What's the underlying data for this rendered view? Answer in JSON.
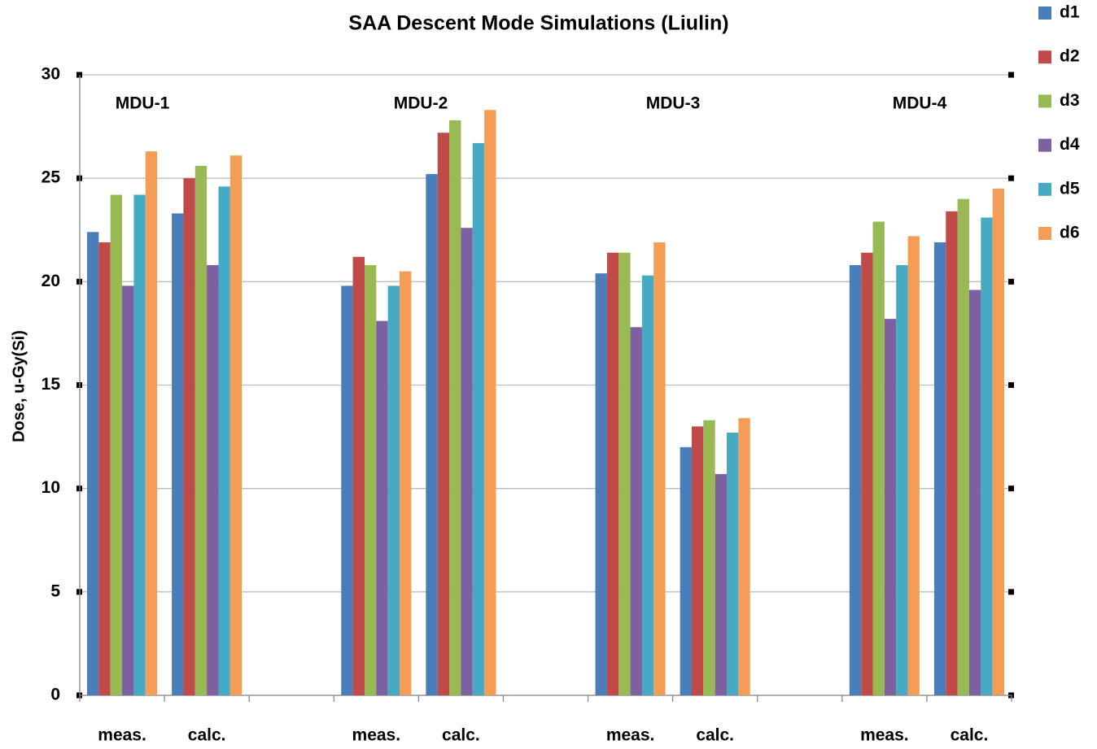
{
  "chart_data": {
    "type": "bar",
    "title": "SAA Descent Mode Simulations (Liulin)",
    "y_label": "Dose, u-Gy(Si)",
    "categories": [
      "meas.",
      "calc.",
      null,
      "meas.",
      "calc.",
      null,
      "meas.",
      "calc.",
      null,
      "meas.",
      "calc."
    ],
    "annotations": [
      "MDU-1",
      "MDU-2",
      "MDU-3",
      "MDU-4"
    ],
    "series": [
      {
        "name": "d1",
        "color": "#4a7ebb",
        "values": [
          22.4,
          23.3,
          null,
          19.8,
          25.2,
          null,
          20.4,
          12.0,
          null,
          20.8,
          21.9
        ]
      },
      {
        "name": "d2",
        "color": "#be4b48",
        "values": [
          21.9,
          25.0,
          null,
          21.2,
          27.2,
          null,
          21.4,
          13.0,
          null,
          21.4,
          23.4
        ]
      },
      {
        "name": "d3",
        "color": "#98b954",
        "values": [
          24.2,
          25.6,
          null,
          20.8,
          27.8,
          null,
          21.4,
          13.3,
          null,
          22.9,
          24.0
        ]
      },
      {
        "name": "d4",
        "color": "#7d60a0",
        "values": [
          19.8,
          20.8,
          null,
          18.1,
          22.6,
          null,
          17.8,
          10.7,
          null,
          18.2,
          19.6
        ]
      },
      {
        "name": "d5",
        "color": "#46aac5",
        "values": [
          24.2,
          24.6,
          null,
          19.8,
          26.7,
          null,
          20.3,
          12.7,
          null,
          20.8,
          23.1
        ]
      },
      {
        "name": "d6",
        "color": "#f59d56",
        "values": [
          26.3,
          26.1,
          null,
          20.5,
          28.3,
          null,
          21.9,
          13.4,
          null,
          22.2,
          24.5
        ]
      }
    ],
    "ylim": [
      0,
      30
    ],
    "yticks": [
      0,
      5,
      10,
      15,
      20,
      25,
      30
    ],
    "grid": true,
    "legend": "right"
  }
}
